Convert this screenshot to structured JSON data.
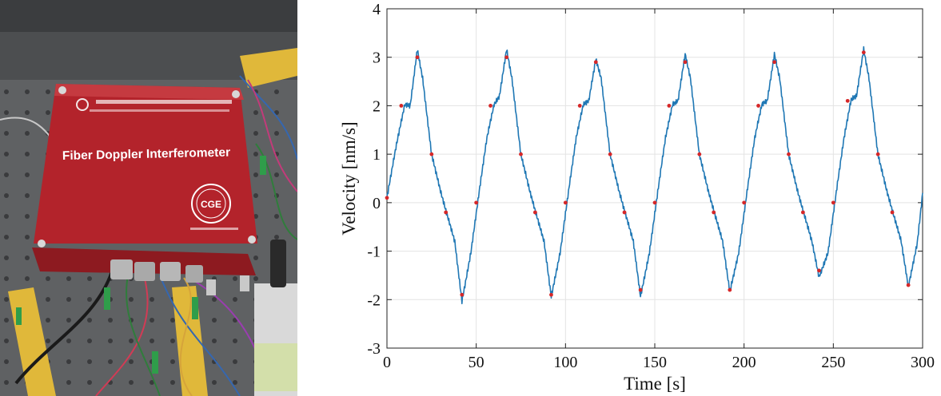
{
  "photo": {
    "device_label": "Fiber Doppler Interferometer",
    "logo_text": "CGE",
    "colors": {
      "device": "#b3232b",
      "table": "#5f6163"
    }
  },
  "chart_data": {
    "type": "line",
    "title": "",
    "xlabel": "Time [s]",
    "ylabel": "Velocity [nm/s]",
    "xlim": [
      0,
      300
    ],
    "ylim": [
      -3,
      4
    ],
    "xticks": [
      0,
      50,
      100,
      150,
      200,
      250,
      300
    ],
    "yticks": [
      -3,
      -2,
      -1,
      0,
      1,
      2,
      3,
      4
    ],
    "grid": true,
    "series": [
      {
        "color": "#1f77b4",
        "style": "line",
        "x": [
          0,
          5,
          10,
          13,
          17,
          20,
          25,
          30,
          33,
          38,
          42,
          47,
          52,
          56,
          60,
          63,
          67,
          70,
          75,
          80,
          83,
          88,
          92,
          97,
          102,
          106,
          110,
          113,
          117,
          120,
          125,
          130,
          133,
          138,
          142,
          147,
          152,
          156,
          160,
          163,
          167,
          170,
          175,
          180,
          183,
          188,
          192,
          197,
          202,
          206,
          210,
          213,
          217,
          220,
          225,
          230,
          233,
          238,
          242,
          247,
          252,
          256,
          260,
          263,
          267,
          270,
          275,
          280,
          283,
          288,
          292,
          297,
          300
        ],
        "y": [
          0.1,
          1.1,
          2.0,
          2.0,
          3.2,
          2.6,
          1.0,
          0.2,
          -0.2,
          -0.8,
          -2.0,
          -1.0,
          0.3,
          1.3,
          2.0,
          2.2,
          3.2,
          2.6,
          1.0,
          0.2,
          -0.2,
          -0.8,
          -1.9,
          -1.0,
          0.3,
          1.3,
          2.0,
          2.1,
          3.0,
          2.6,
          1.0,
          0.2,
          -0.2,
          -0.8,
          -1.9,
          -1.0,
          0.3,
          1.3,
          2.0,
          2.1,
          3.1,
          2.6,
          1.0,
          0.2,
          -0.2,
          -0.8,
          -1.8,
          -1.0,
          0.3,
          1.3,
          2.0,
          2.1,
          3.1,
          2.6,
          1.0,
          0.2,
          -0.2,
          -0.8,
          -1.5,
          -1.0,
          0.3,
          1.3,
          2.1,
          2.2,
          3.2,
          2.6,
          1.0,
          0.2,
          -0.2,
          -0.8,
          -1.7,
          -0.8,
          0.2
        ]
      },
      {
        "color": "#d62728",
        "style": "points",
        "x": [
          0,
          8,
          17,
          25,
          33,
          42,
          50,
          58,
          67,
          75,
          83,
          92,
          100,
          108,
          117,
          125,
          133,
          142,
          150,
          158,
          167,
          175,
          183,
          192,
          200,
          208,
          217,
          225,
          233,
          242,
          250,
          258,
          267,
          275,
          283,
          292
        ],
        "y": [
          0.1,
          2.0,
          3.0,
          1.0,
          -0.2,
          -1.9,
          0.0,
          2.0,
          3.0,
          1.0,
          -0.2,
          -1.9,
          0.0,
          2.0,
          2.9,
          1.0,
          -0.2,
          -1.8,
          0.0,
          2.0,
          2.9,
          1.0,
          -0.2,
          -1.8,
          0.0,
          2.0,
          2.9,
          1.0,
          -0.2,
          -1.4,
          0.0,
          2.1,
          3.1,
          1.0,
          -0.2,
          -1.7
        ]
      }
    ]
  }
}
